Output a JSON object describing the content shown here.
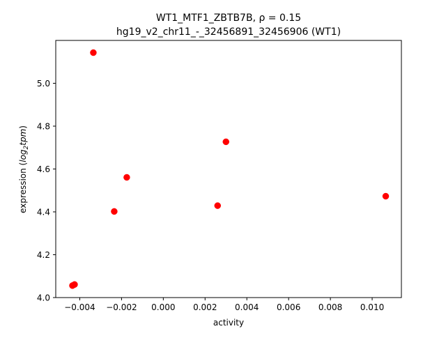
{
  "chart_data": {
    "type": "scatter",
    "title_line1": "WT1_MTF1_ZBTB7B, ρ = 0.15",
    "title_line2": "hg19_v2_chr11_-_32456891_32456906 (WT1)",
    "xlabel": "activity",
    "ylabel_prefix": "expression (",
    "ylabel_math": "log",
    "ylabel_sub": "2",
    "ylabel_math2": "tpm",
    "ylabel_suffix": ")",
    "xlim": [
      -0.00515,
      0.0114
    ],
    "ylim": [
      4.0,
      5.2
    ],
    "xticks": [
      -0.004,
      -0.002,
      0.0,
      0.002,
      0.004,
      0.006,
      0.008,
      0.01
    ],
    "xtick_labels": [
      "−0.004",
      "−0.002",
      "0.000",
      "0.002",
      "0.004",
      "0.006",
      "0.008",
      "0.010"
    ],
    "yticks": [
      4.0,
      4.2,
      4.4,
      4.6,
      4.8,
      5.0
    ],
    "ytick_labels": [
      "4.0",
      "4.2",
      "4.4",
      "4.6",
      "4.8",
      "5.0"
    ],
    "marker_color": "#ff0000",
    "grid": false,
    "series": [
      {
        "points": [
          {
            "x": -0.00335,
            "y": 5.143
          },
          {
            "x": -0.00435,
            "y": 4.056
          },
          {
            "x": -0.00425,
            "y": 4.061
          },
          {
            "x": -0.00175,
            "y": 4.561
          },
          {
            "x": -0.00235,
            "y": 4.402
          },
          {
            "x": 0.003,
            "y": 4.727
          },
          {
            "x": 0.0026,
            "y": 4.429
          },
          {
            "x": 0.01065,
            "y": 4.473
          }
        ]
      }
    ]
  }
}
